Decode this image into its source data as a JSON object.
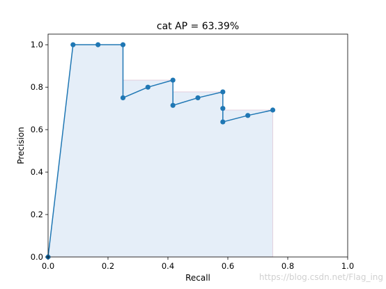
{
  "chart_data": {
    "type": "line",
    "title": "cat AP = 63.39%",
    "xlabel": "Recall",
    "ylabel": "Precision",
    "xlim": [
      0.0,
      1.0
    ],
    "ylim": [
      0.0,
      1.05
    ],
    "xticks": [
      "0.0",
      "0.2",
      "0.4",
      "0.6",
      "0.8",
      "1.0"
    ],
    "yticks": [
      "0.0",
      "0.2",
      "0.4",
      "0.6",
      "0.8",
      "1.0"
    ],
    "grid": false,
    "legend": "none",
    "series": [
      {
        "type": "line-with-markers",
        "color": "#1f77b4",
        "x": [
          0.0,
          0.0833,
          0.1667,
          0.25,
          0.25,
          0.3333,
          0.4167,
          0.4167,
          0.5,
          0.5833,
          0.5833,
          0.5833,
          0.6667,
          0.75
        ],
        "y": [
          0.0,
          1.0,
          1.0,
          1.0,
          0.75,
          0.8,
          0.8333,
          0.7143,
          0.75,
          0.7778,
          0.7,
          0.6364,
          0.6667,
          0.6923
        ]
      },
      {
        "type": "interpolated-area",
        "color": "#1f77b4",
        "x": [
          0.0,
          0.0833,
          0.25,
          0.25,
          0.4167,
          0.4167,
          0.5833,
          0.5833,
          0.75
        ],
        "y": [
          0.0,
          1.0,
          1.0,
          0.8333,
          0.8333,
          0.7778,
          0.7778,
          0.6923,
          0.6923
        ]
      }
    ]
  },
  "watermark": "https://blog.csdn.net/Flag_ing"
}
